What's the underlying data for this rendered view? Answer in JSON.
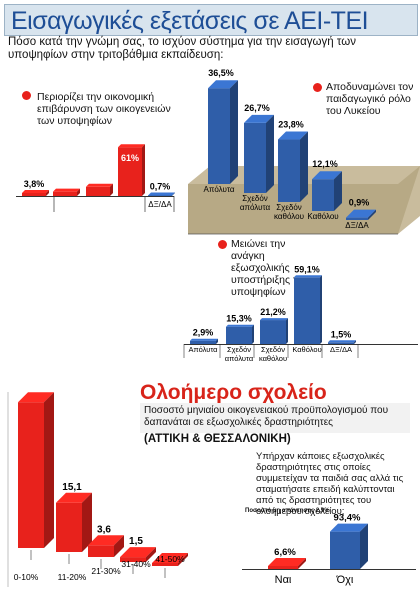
{
  "header": {
    "title": "Εισαγωγικές εξετάσεις σε ΑΕΙ-ΤΕΙ",
    "question": "Πόσο κατά την γνώμη σας, το ισχύον σύστημα για την εισαγωγή των υποψηφίων στην τριτοβάθμια εκπαίδευση:"
  },
  "section2": {
    "title": "Ολοήμερο σχολείο",
    "subtitle": "Ποσοστό μηνιαίου οικογενειακού προϋπολογισμού που δαπανάται σε εξωσχολικές δραστηριότητες",
    "region": "(ΑΤΤΙΚΗ & ΘΕΣΣΑΛΟΝΙΚΗ)"
  },
  "colors": {
    "red": "#e8221c",
    "blue": "#2f5ea9",
    "title_blue": "#1e4e96",
    "shelf": "#c9bc9d"
  },
  "chart_data": [
    {
      "type": "bar",
      "title": "Περιορίζει την οικονομική επιβάρυνση των οικογενειών των υποψηφίων",
      "categories": [
        "",
        "",
        "",
        "",
        "ΔΞ/ΔΑ"
      ],
      "values": [
        3.8,
        5.4,
        11.5,
        61,
        0.7
      ],
      "labels": [
        "3,8%",
        "",
        "",
        "61%",
        "0,7%"
      ],
      "ylim": [
        0,
        65
      ]
    },
    {
      "type": "bar",
      "title": "Αποδυναμώνει τον παιδαγωγικό ρόλο του Λυκείου",
      "categories": [
        "Απόλυτα",
        "Σχεδόν απόλυτα",
        "Σχεδόν καθόλου",
        "Καθόλου",
        "ΔΞ/ΔΑ"
      ],
      "values": [
        36.5,
        26.7,
        23.8,
        12.1,
        0.9
      ],
      "labels": [
        "36,5%",
        "26,7%",
        "23,8%",
        "12,1%",
        "0,9%"
      ],
      "ylim": [
        0,
        40
      ]
    },
    {
      "type": "bar",
      "title": "Μειώνει την ανάγκη εξωσχολικής υποστήριξης των υποψηφίων",
      "categories": [
        "Απόλυτα",
        "Σχεδόν απόλυτα",
        "Σχεδόν καθόλου",
        "Καθόλου",
        "ΔΞ/ΔΑ"
      ],
      "values": [
        2.9,
        15.3,
        21.2,
        59.1,
        1.5
      ],
      "labels": [
        "2,9%",
        "15,3%",
        "21,2%",
        "59,1%",
        "1,5%"
      ],
      "ylim": [
        0,
        62
      ]
    },
    {
      "type": "bar",
      "title": "Ποσοστό μηνιαίου οικογενειακού προϋπολογισμού που δαπανάται σε εξωσχολικές δραστηριότητες",
      "categories": [
        "0-10%",
        "11-20%",
        "21-30%",
        "31-40%",
        "41-50%"
      ],
      "values": [
        44.7,
        15.1,
        3.6,
        1.5,
        0
      ],
      "labels": [
        "44,7",
        "15,1",
        "3,6",
        "1,5",
        ""
      ],
      "ylim": [
        0,
        46
      ]
    },
    {
      "type": "bar",
      "title": "Υπήρχαν κάποιες εξωσχολικές δραστηριότητες στις οποίες συμμετείχαν τα παιδιά σας αλλά τις σταματήσατε επειδή καλύπτονται από τις δραστηριότητες του ολοήμερου σχολείου;",
      "categories": [
        "Ναι",
        "Όχι"
      ],
      "values": [
        6.6,
        93.4
      ],
      "labels": [
        "6,6%",
        "93,4%"
      ],
      "note": "Ποσοστό μη απάντησης 2,9%",
      "ylim": [
        0,
        100
      ]
    }
  ]
}
